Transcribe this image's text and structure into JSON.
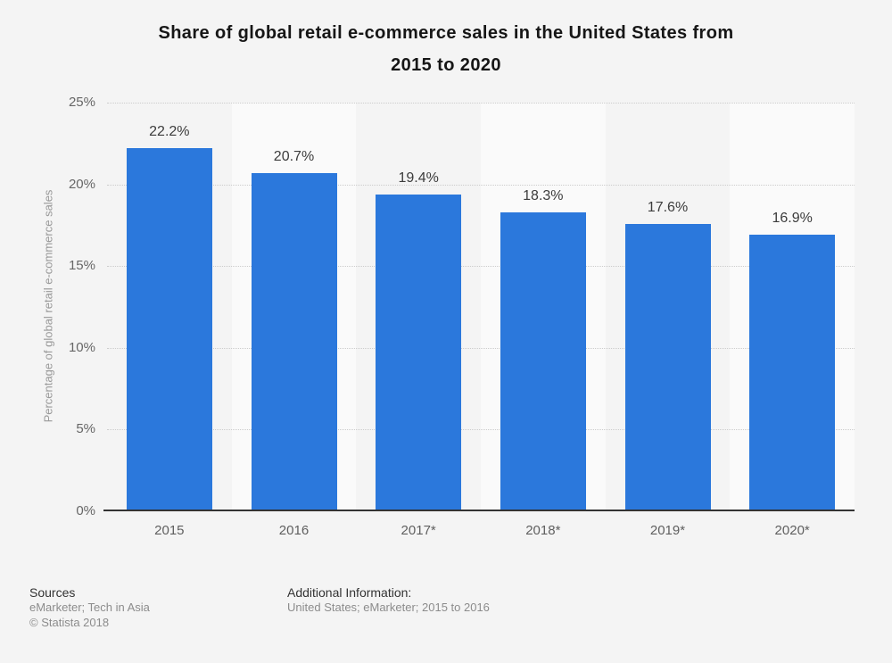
{
  "page": {
    "background": "#f4f4f4",
    "title_lines": [
      "Share of global retail e-commerce sales in the United States from",
      "2015 to 2020"
    ]
  },
  "chart_data": {
    "type": "bar",
    "title": "Share of global retail e-commerce sales in the United States from 2015 to 2020",
    "categories": [
      "2015",
      "2016",
      "2017*",
      "2018*",
      "2019*",
      "2020*"
    ],
    "values": [
      22.2,
      20.7,
      19.4,
      18.3,
      17.6,
      16.9
    ],
    "value_labels": [
      "22.2%",
      "20.7%",
      "19.4%",
      "18.3%",
      "17.6%",
      "16.9%"
    ],
    "xlabel": "",
    "ylabel": "Percentage of global retail e-commerce sales",
    "ylim": [
      0,
      25
    ],
    "yticks": [
      {
        "value": 0,
        "label": "0%"
      },
      {
        "value": 5,
        "label": "5%"
      },
      {
        "value": 10,
        "label": "10%"
      },
      {
        "value": 15,
        "label": "15%"
      },
      {
        "value": 20,
        "label": "20%"
      },
      {
        "value": 25,
        "label": "25%"
      }
    ],
    "grid": "horizontal-dotted",
    "legend": "none",
    "colors": {
      "bar": "#2b78dc",
      "alt_column": "#fafafa",
      "gridline": "#cccccc",
      "axis_line": "#333333",
      "tick_label": "#666666",
      "x_label": "#5f5f5f",
      "value_label": "#3c3c3c",
      "y_axis_title": "#999999",
      "title": "#161616"
    }
  },
  "footer": {
    "sources_heading": "Sources",
    "sources_text": "eMarketer; Tech in Asia",
    "copyright": "© Statista 2018",
    "additional_heading": "Additional Information:",
    "additional_text": "United States; eMarketer; 2015 to 2016"
  }
}
